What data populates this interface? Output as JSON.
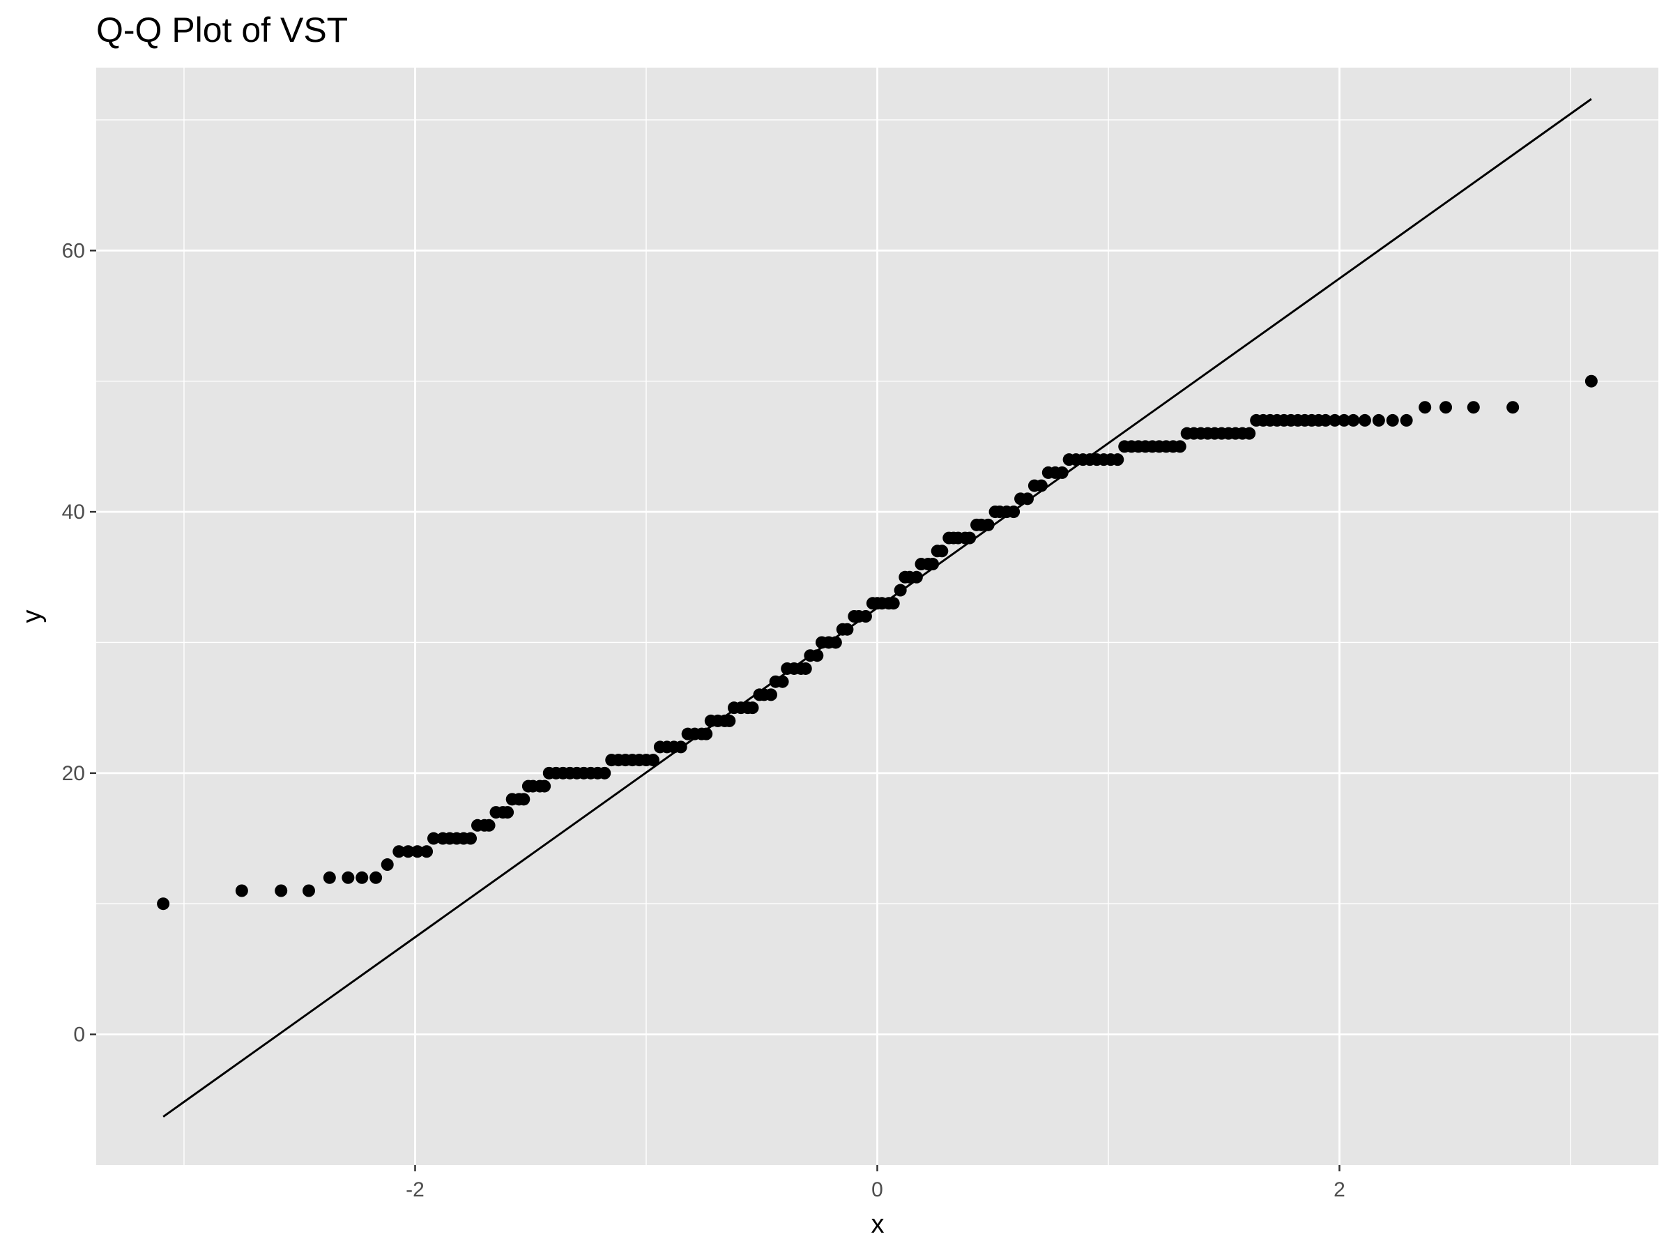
{
  "chart_data": {
    "type": "scatter",
    "title": "Q-Q Plot of VST",
    "xlabel": "x",
    "ylabel": "y",
    "xlim": [
      -3.38,
      3.38
    ],
    "ylim": [
      -10,
      74
    ],
    "x_ticks": [
      -2,
      0,
      2
    ],
    "x_tick_labels": [
      "-2",
      "0",
      "2"
    ],
    "y_ticks": [
      0,
      20,
      40,
      60
    ],
    "y_tick_labels": [
      "0",
      "20",
      "40",
      "60"
    ],
    "grid": true,
    "background": "#e5e5e5",
    "grid_color": "#ffffff",
    "point_color": "#000000",
    "series": [
      {
        "kind": "points",
        "points": [
          [
            -3.09,
            10
          ],
          [
            -2.75,
            11
          ],
          [
            -2.58,
            11
          ],
          [
            -2.46,
            11
          ],
          [
            -2.37,
            12
          ],
          [
            -2.29,
            12
          ],
          [
            -2.23,
            12
          ],
          [
            -2.17,
            12
          ],
          [
            -2.12,
            13
          ],
          [
            -2.07,
            14
          ],
          [
            -2.03,
            14
          ],
          [
            -1.99,
            14
          ],
          [
            -1.95,
            14
          ],
          [
            -1.92,
            15
          ],
          [
            -1.88,
            15
          ],
          [
            -1.85,
            15
          ],
          [
            -1.82,
            15
          ],
          [
            -1.79,
            15
          ],
          [
            -1.76,
            15
          ],
          [
            -1.73,
            16
          ],
          [
            -1.7,
            16
          ],
          [
            -1.68,
            16
          ],
          [
            -1.65,
            17
          ],
          [
            -1.62,
            17
          ],
          [
            -1.6,
            17
          ],
          [
            -1.58,
            18
          ],
          [
            -1.55,
            18
          ],
          [
            -1.53,
            18
          ],
          [
            -1.51,
            19
          ],
          [
            -1.49,
            19
          ],
          [
            -1.46,
            19
          ],
          [
            -1.44,
            19
          ],
          [
            -1.42,
            20
          ],
          [
            -1.39,
            20
          ],
          [
            -1.36,
            20
          ],
          [
            -1.33,
            20
          ],
          [
            -1.3,
            20
          ],
          [
            -1.27,
            20
          ],
          [
            -1.24,
            20
          ],
          [
            -1.21,
            20
          ],
          [
            -1.18,
            20
          ],
          [
            -1.15,
            21
          ],
          [
            -1.12,
            21
          ],
          [
            -1.09,
            21
          ],
          [
            -1.06,
            21
          ],
          [
            -1.03,
            21
          ],
          [
            -1.0,
            21
          ],
          [
            -0.97,
            21
          ],
          [
            -0.94,
            22
          ],
          [
            -0.91,
            22
          ],
          [
            -0.88,
            22
          ],
          [
            -0.85,
            22
          ],
          [
            -0.82,
            23
          ],
          [
            -0.79,
            23
          ],
          [
            -0.76,
            23
          ],
          [
            -0.74,
            23
          ],
          [
            -0.72,
            24
          ],
          [
            -0.69,
            24
          ],
          [
            -0.66,
            24
          ],
          [
            -0.64,
            24
          ],
          [
            -0.62,
            25
          ],
          [
            -0.59,
            25
          ],
          [
            -0.56,
            25
          ],
          [
            -0.54,
            25
          ],
          [
            -0.51,
            26
          ],
          [
            -0.49,
            26
          ],
          [
            -0.46,
            26
          ],
          [
            -0.44,
            27
          ],
          [
            -0.41,
            27
          ],
          [
            -0.39,
            28
          ],
          [
            -0.36,
            28
          ],
          [
            -0.33,
            28
          ],
          [
            -0.31,
            28
          ],
          [
            -0.29,
            29
          ],
          [
            -0.26,
            29
          ],
          [
            -0.24,
            30
          ],
          [
            -0.21,
            30
          ],
          [
            -0.18,
            30
          ],
          [
            -0.15,
            31
          ],
          [
            -0.13,
            31
          ],
          [
            -0.1,
            32
          ],
          [
            -0.08,
            32
          ],
          [
            -0.05,
            32
          ],
          [
            -0.02,
            33
          ],
          [
            0.0,
            33
          ],
          [
            0.02,
            33
          ],
          [
            0.05,
            33
          ],
          [
            0.07,
            33
          ],
          [
            0.1,
            34
          ],
          [
            0.12,
            35
          ],
          [
            0.14,
            35
          ],
          [
            0.17,
            35
          ],
          [
            0.19,
            36
          ],
          [
            0.22,
            36
          ],
          [
            0.24,
            36
          ],
          [
            0.26,
            37
          ],
          [
            0.28,
            37
          ],
          [
            0.31,
            38
          ],
          [
            0.33,
            38
          ],
          [
            0.35,
            38
          ],
          [
            0.38,
            38
          ],
          [
            0.4,
            38
          ],
          [
            0.43,
            39
          ],
          [
            0.45,
            39
          ],
          [
            0.48,
            39
          ],
          [
            0.51,
            40
          ],
          [
            0.53,
            40
          ],
          [
            0.56,
            40
          ],
          [
            0.59,
            40
          ],
          [
            0.62,
            41
          ],
          [
            0.65,
            41
          ],
          [
            0.68,
            42
          ],
          [
            0.71,
            42
          ],
          [
            0.74,
            43
          ],
          [
            0.77,
            43
          ],
          [
            0.8,
            43
          ],
          [
            0.83,
            44
          ],
          [
            0.86,
            44
          ],
          [
            0.89,
            44
          ],
          [
            0.92,
            44
          ],
          [
            0.95,
            44
          ],
          [
            0.98,
            44
          ],
          [
            1.01,
            44
          ],
          [
            1.04,
            44
          ],
          [
            1.07,
            45
          ],
          [
            1.1,
            45
          ],
          [
            1.13,
            45
          ],
          [
            1.16,
            45
          ],
          [
            1.19,
            45
          ],
          [
            1.22,
            45
          ],
          [
            1.25,
            45
          ],
          [
            1.28,
            45
          ],
          [
            1.31,
            45
          ],
          [
            1.34,
            46
          ],
          [
            1.37,
            46
          ],
          [
            1.4,
            46
          ],
          [
            1.43,
            46
          ],
          [
            1.46,
            46
          ],
          [
            1.49,
            46
          ],
          [
            1.52,
            46
          ],
          [
            1.55,
            46
          ],
          [
            1.58,
            46
          ],
          [
            1.61,
            46
          ],
          [
            1.64,
            47
          ],
          [
            1.67,
            47
          ],
          [
            1.7,
            47
          ],
          [
            1.73,
            47
          ],
          [
            1.76,
            47
          ],
          [
            1.79,
            47
          ],
          [
            1.82,
            47
          ],
          [
            1.85,
            47
          ],
          [
            1.88,
            47
          ],
          [
            1.91,
            47
          ],
          [
            1.94,
            47
          ],
          [
            1.98,
            47
          ],
          [
            2.02,
            47
          ],
          [
            2.06,
            47
          ],
          [
            2.11,
            47
          ],
          [
            2.17,
            47
          ],
          [
            2.23,
            47
          ],
          [
            2.29,
            47
          ],
          [
            2.37,
            48
          ],
          [
            2.46,
            48
          ],
          [
            2.58,
            48
          ],
          [
            2.75,
            48
          ],
          [
            3.09,
            50
          ]
        ]
      },
      {
        "kind": "reference_line",
        "from": [
          -3.09,
          -6.3
        ],
        "to": [
          3.09,
          71.6
        ]
      }
    ]
  }
}
